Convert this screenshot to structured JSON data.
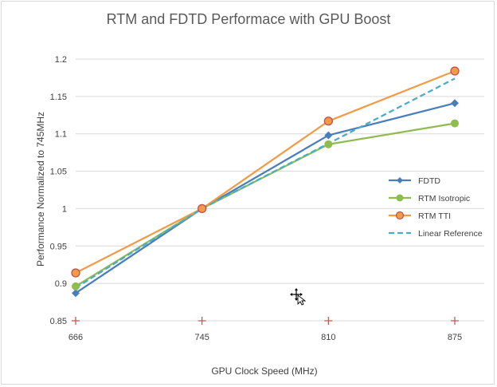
{
  "chart_data": {
    "type": "line",
    "title": "RTM and FDTD Performace with GPU Boost",
    "xlabel": "GPU Clock Speed (MHz)",
    "ylabel": "Performance Normalized to 745MHz",
    "categories": [
      "666",
      "745",
      "810",
      "875"
    ],
    "ylim": [
      0.85,
      1.2
    ],
    "yticks": [
      "0.85",
      "0.9",
      "0.95",
      "1",
      "1.05",
      "1.1",
      "1.15",
      "1.2"
    ],
    "grid": true,
    "legend_position": "right",
    "series": [
      {
        "name": "FDTD",
        "values": [
          0.887,
          1.0,
          1.098,
          1.141
        ],
        "color": "#4a7ebb",
        "marker": "diamond",
        "dash": false
      },
      {
        "name": "RTM Isotropic",
        "values": [
          0.896,
          1.0,
          1.086,
          1.114
        ],
        "color": "#8fbc4f",
        "marker": "circle",
        "dash": false
      },
      {
        "name": "RTM TTI",
        "values": [
          0.914,
          1.0,
          1.117,
          1.184
        ],
        "color": "#f29b46",
        "marker": "circle-outlined",
        "marker_edge": "#c0504d",
        "dash": false
      },
      {
        "name": "Linear Reference",
        "values": [
          0.894,
          1.0,
          1.087,
          1.174
        ],
        "color": "#4bacc6",
        "marker": "none",
        "dash": true
      }
    ],
    "baseline_markers": {
      "symbol": "+",
      "color": "#c0504d"
    }
  }
}
